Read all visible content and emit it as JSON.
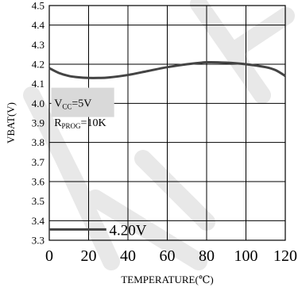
{
  "chart_data": {
    "type": "line",
    "title": "",
    "xlabel": "TEMPERATURE(℃)",
    "ylabel": "VBAT(V)",
    "xlim": [
      0,
      120
    ],
    "ylim": [
      3.3,
      4.5
    ],
    "x_ticks": [
      "0",
      "20",
      "40",
      "60",
      "80",
      "100",
      "120"
    ],
    "y_ticks": [
      "3.3",
      "3.4",
      "3.5",
      "3.6",
      "3.7",
      "3.8",
      "3.9",
      "4.0",
      "4.1",
      "4.2",
      "4.3",
      "4.4",
      "4.5"
    ],
    "grid": true,
    "legend": {
      "position": "bottom-left",
      "label": "4.20V"
    },
    "annotation": {
      "vcc_prefix": "V",
      "vcc_sub": "CC",
      "vcc_value": "=5V",
      "rprog_prefix": "R",
      "rprog_sub": "PROG",
      "rprog_value": "=10K"
    },
    "series": [
      {
        "name": "4.20V",
        "color": "#444444",
        "x": [
          0,
          5,
          10,
          15,
          20,
          25,
          30,
          40,
          50,
          60,
          70,
          80,
          90,
          100,
          110,
          115,
          120
        ],
        "y": [
          4.18,
          4.155,
          4.14,
          4.133,
          4.13,
          4.13,
          4.132,
          4.145,
          4.165,
          4.185,
          4.2,
          4.21,
          4.208,
          4.2,
          4.185,
          4.17,
          4.14
        ]
      }
    ]
  },
  "watermark_color": "#e8e8e8"
}
